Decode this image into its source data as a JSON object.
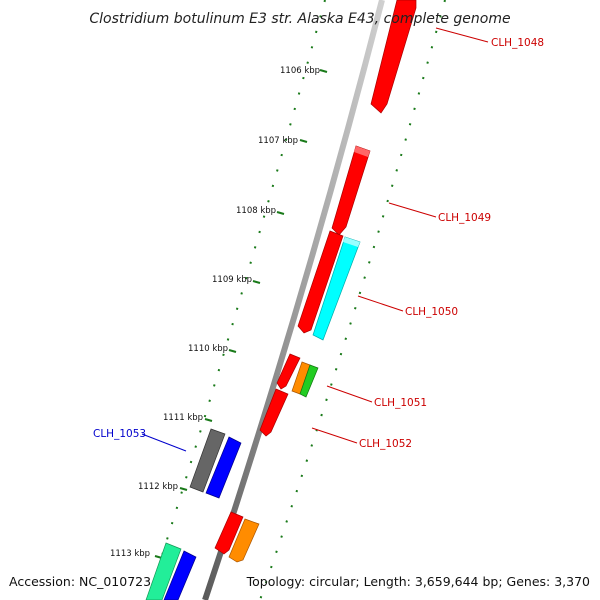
{
  "title": "Clostridium botulinum E3 str. Alaska E43, complete genome",
  "footer": {
    "accession": "Accession: NC_010723",
    "summary": "Topology: circular; Length: 3,659,644 bp; Genes: 3,370"
  },
  "kbp_marks": [
    "1106 kbp",
    "1107 kbp",
    "1108 kbp",
    "1109 kbp",
    "1110 kbp",
    "1111 kbp",
    "1112 kbp",
    "1113 kbp"
  ],
  "gene_labels": [
    {
      "text": "CLH_1048",
      "color": "#cc0000"
    },
    {
      "text": "CLH_1049",
      "color": "#cc0000"
    },
    {
      "text": "CLH_1050",
      "color": "#cc0000"
    },
    {
      "text": "CLH_1051",
      "color": "#cc0000"
    },
    {
      "text": "CLH_1052",
      "color": "#cc0000"
    },
    {
      "text": "CLH_1053",
      "color": "#0000cc"
    }
  ],
  "colors": {
    "backbone": "#8a8a8a",
    "tick": "#1a7a1a",
    "red": "#ff0000",
    "cyan": "#00ffff",
    "orange": "#ff8c00",
    "green": "#22cc22",
    "gray": "#666666",
    "blue": "#0000ff",
    "seagreen": "#22ee99"
  }
}
